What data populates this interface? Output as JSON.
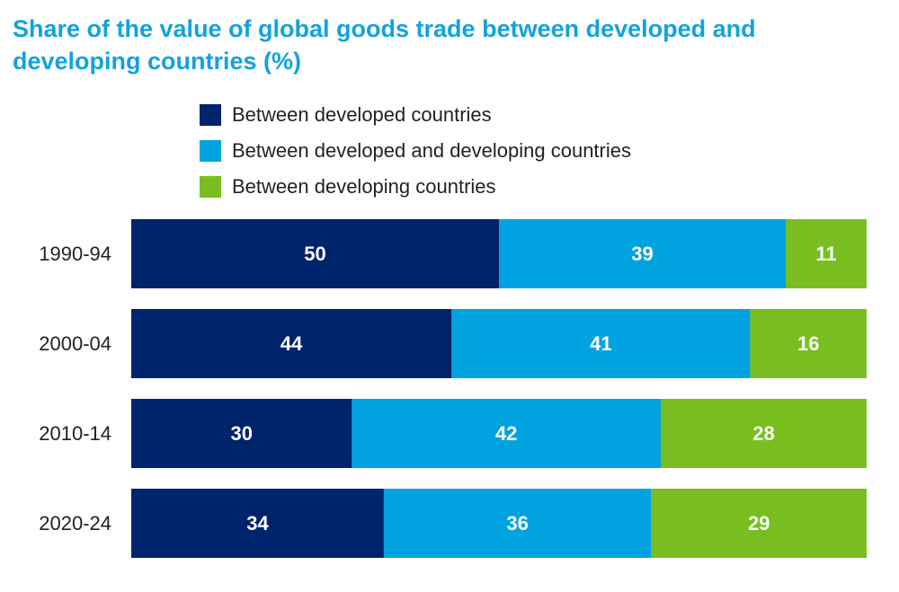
{
  "chart_data": {
    "type": "bar",
    "orientation": "horizontal",
    "stacked": true,
    "title": "Share of the value of global goods trade between developed and developing countries (%)",
    "categories": [
      "1990-94",
      "2000-04",
      "2010-14",
      "2020-24"
    ],
    "series": [
      {
        "name": "Between developed countries",
        "color": "#00246b",
        "values": [
          50,
          44,
          30,
          34
        ]
      },
      {
        "name": "Between developed and developing countries",
        "color": "#00a3e0",
        "values": [
          39,
          41,
          42,
          36
        ]
      },
      {
        "name": "Between developing countries",
        "color": "#78be20",
        "values": [
          11,
          16,
          28,
          29
        ]
      }
    ],
    "legend_position": "top",
    "grid": false
  }
}
